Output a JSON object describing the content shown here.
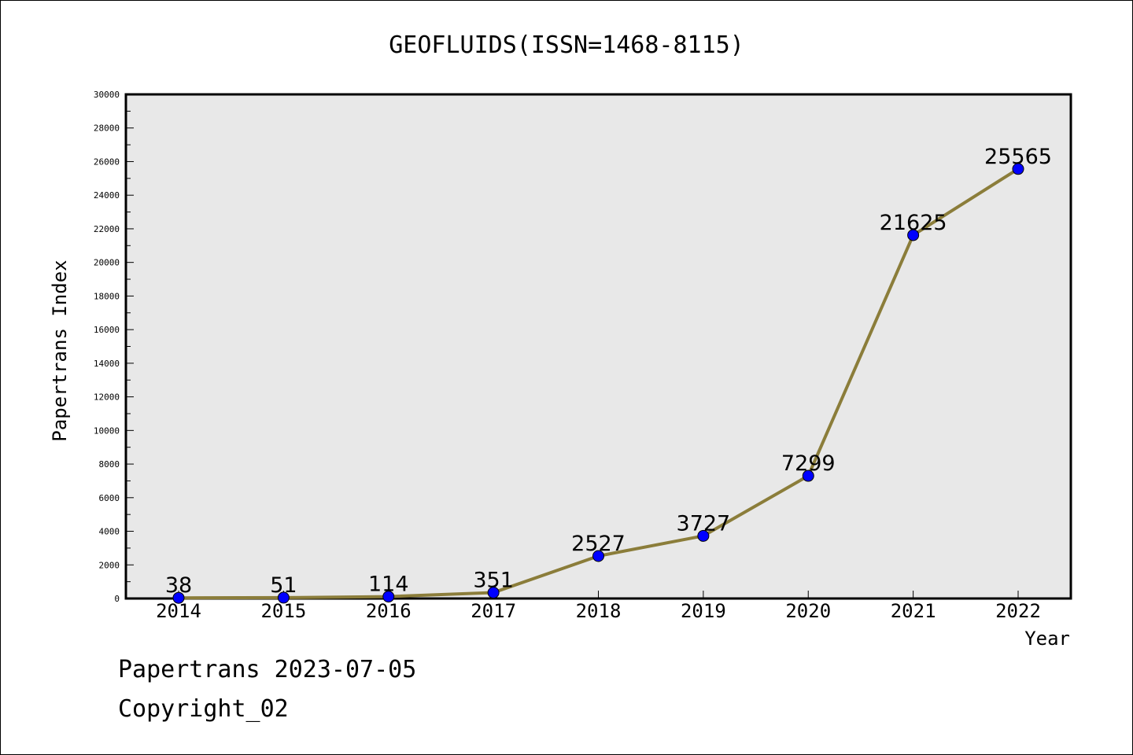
{
  "chart_data": {
    "type": "line",
    "title": "GEOFLUIDS(ISSN=1468-8115)",
    "xlabel": "Year",
    "ylabel": "Papertrans Index",
    "categories": [
      "2014",
      "2015",
      "2016",
      "2017",
      "2018",
      "2019",
      "2020",
      "2021",
      "2022"
    ],
    "values": [
      38,
      51,
      114,
      351,
      2527,
      3727,
      7299,
      21625,
      25565
    ],
    "data_labels": [
      "38",
      "51",
      "114",
      "351",
      "2527",
      "3727",
      "7299",
      "21625",
      "25565"
    ],
    "ylim": [
      0,
      30000
    ],
    "yticks": [
      0,
      2000,
      4000,
      6000,
      8000,
      10000,
      12000,
      14000,
      16000,
      18000,
      20000,
      22000,
      24000,
      26000,
      28000,
      30000
    ],
    "ytick_labels": [
      "0",
      "2000",
      "4000",
      "6000",
      "8000",
      "10000",
      "12000",
      "14000",
      "16000",
      "18000",
      "20000",
      "22000",
      "24000",
      "26000",
      "28000",
      "30000"
    ],
    "grid": false,
    "line_color": "#8b7d3a",
    "marker_color": "#0000ff",
    "plot_background": "#e8e8e8"
  },
  "footer": {
    "line1": "Papertrans 2023-07-05",
    "line2": "Copyright_02"
  }
}
